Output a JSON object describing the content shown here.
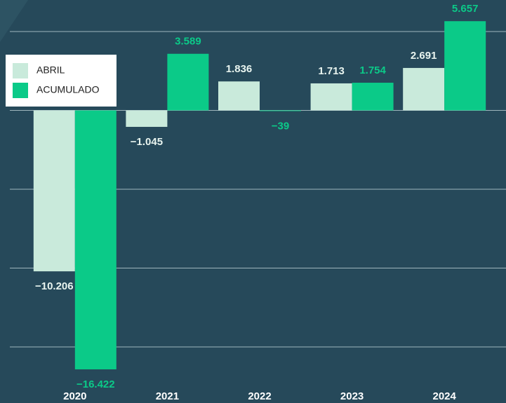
{
  "chart_data": {
    "type": "bar",
    "categories": [
      "2020",
      "2021",
      "2022",
      "2023",
      "2024"
    ],
    "series": [
      {
        "name": "ABRIL",
        "color": "#c9eadb",
        "values": [
          -10206,
          -1045,
          1836,
          1713,
          2691
        ],
        "value_labels": [
          "−10.206",
          "−1.045",
          "1.836",
          "1.713",
          "2.691"
        ]
      },
      {
        "name": "ACUMULADO",
        "color": "#0bca88",
        "values": [
          -16422,
          3589,
          -39,
          1754,
          5657
        ],
        "value_labels": [
          "−16.422",
          "3.589",
          "−39",
          "1.754",
          "5.657"
        ]
      }
    ],
    "ylim": [
      -17000,
      7000
    ],
    "yticks": [
      -15000,
      -10000,
      -5000,
      0,
      5000
    ],
    "grid": true,
    "legend": "upper left"
  }
}
